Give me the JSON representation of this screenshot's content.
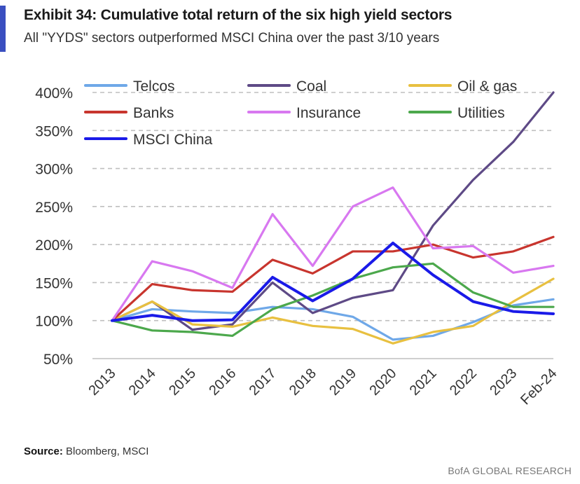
{
  "header": {
    "title": "Exhibit 34: Cumulative total return of the six high yield sectors",
    "subtitle": "All \"YYDS\" sectors outperformed MSCI China over the past 3/10 years"
  },
  "footer": {
    "source_label": "Source:",
    "source_text": "Bloomberg, MSCI",
    "credit": "BofA GLOBAL RESEARCH"
  },
  "colors": {
    "accent": "#3a4fc0",
    "grid": "#bfbfbf"
  },
  "chart_data": {
    "type": "line",
    "title": "Cumulative total return of the six high yield sectors",
    "xlabel": "",
    "ylabel": "",
    "categories": [
      "2013",
      "2014",
      "2015",
      "2016",
      "2017",
      "2018",
      "2019",
      "2020",
      "2021",
      "2022",
      "2023",
      "Feb-24"
    ],
    "ylim": [
      50,
      400
    ],
    "yticks": [
      50,
      100,
      150,
      200,
      250,
      300,
      350,
      400
    ],
    "ytick_labels": [
      "50%",
      "100%",
      "150%",
      "200%",
      "250%",
      "300%",
      "350%",
      "400%"
    ],
    "grid": "horizontal dashed",
    "legend_position": "top",
    "series": [
      {
        "name": "Telcos",
        "color": "#6fa8e8",
        "values": [
          100,
          115,
          112,
          110,
          118,
          115,
          105,
          75,
          80,
          98,
          120,
          128
        ]
      },
      {
        "name": "Coal",
        "color": "#5e4a86",
        "values": [
          100,
          125,
          88,
          95,
          150,
          110,
          130,
          140,
          225,
          285,
          335,
          400
        ]
      },
      {
        "name": "Oil & gas",
        "color": "#e8c040",
        "values": [
          100,
          125,
          95,
          92,
          104,
          93,
          89,
          70,
          85,
          93,
          125,
          155
        ]
      },
      {
        "name": "Banks",
        "color": "#c8352e",
        "values": [
          100,
          148,
          140,
          138,
          180,
          162,
          191,
          191,
          200,
          183,
          191,
          210
        ]
      },
      {
        "name": "Insurance",
        "color": "#d878f0",
        "values": [
          100,
          178,
          165,
          143,
          240,
          172,
          250,
          275,
          195,
          198,
          163,
          172
        ]
      },
      {
        "name": "Utilities",
        "color": "#4ca84c",
        "values": [
          100,
          87,
          85,
          80,
          115,
          133,
          155,
          170,
          175,
          137,
          118,
          118
        ]
      },
      {
        "name": "MSCI China",
        "color": "#1a1ae8",
        "values": [
          100,
          107,
          100,
          101,
          157,
          126,
          155,
          202,
          160,
          125,
          112,
          109
        ]
      }
    ]
  }
}
